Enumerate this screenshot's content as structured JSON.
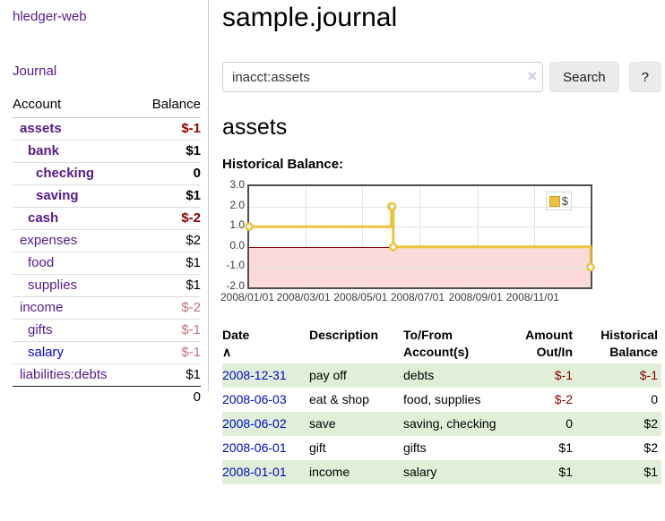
{
  "app": {
    "brand": "hledger-web"
  },
  "sidebar": {
    "journal_link": "Journal",
    "table": {
      "headers": {
        "account": "Account",
        "balance": "Balance"
      },
      "rows": [
        {
          "account": "assets",
          "balance": "$-1",
          "level": 1,
          "bold": true,
          "link_color": "purple"
        },
        {
          "account": "bank",
          "balance": "$1",
          "level": 2,
          "bold": true,
          "link_color": "purple"
        },
        {
          "account": "checking",
          "balance": "0",
          "level": 3,
          "bold": true,
          "link_color": "purple"
        },
        {
          "account": "saving",
          "balance": "$1",
          "level": 3,
          "bold": true,
          "link_color": "purple"
        },
        {
          "account": "cash",
          "balance": "$-2",
          "level": 2,
          "bold": true,
          "link_color": "purple"
        },
        {
          "account": "expenses",
          "balance": "$2",
          "level": 1,
          "bold": false,
          "link_color": "purple"
        },
        {
          "account": "food",
          "balance": "$1",
          "level": 2,
          "bold": false,
          "link_color": "purple"
        },
        {
          "account": "supplies",
          "balance": "$1",
          "level": 2,
          "bold": false,
          "link_color": "purple"
        },
        {
          "account": "income",
          "balance": "$-2",
          "level": 1,
          "bold": false,
          "link_color": "purple"
        },
        {
          "account": "gifts",
          "balance": "$-1",
          "level": 2,
          "bold": false,
          "link_color": "purple"
        },
        {
          "account": "salary",
          "balance": "$-1",
          "level": 2,
          "bold": false,
          "link_color": "blue"
        },
        {
          "account": "liabilities:debts",
          "balance": "$1",
          "level": 1,
          "bold": false,
          "link_color": "purple"
        }
      ],
      "total": "0"
    }
  },
  "header": {
    "title": "sample.journal"
  },
  "search": {
    "value": "inacct:assets",
    "clear_icon": "✕",
    "button_label": "Search",
    "help_label": "?"
  },
  "account_page": {
    "title": "assets",
    "chart_label": "Historical Balance:"
  },
  "chart_data": {
    "type": "line",
    "style": "step",
    "title": "Historical Balance",
    "series": [
      {
        "name": "$",
        "color": "#edc240",
        "points": [
          {
            "date": "2008-01-01",
            "value": 1
          },
          {
            "date": "2008-06-01",
            "value": 2
          },
          {
            "date": "2008-06-02",
            "value": 2
          },
          {
            "date": "2008-06-03",
            "value": 0
          },
          {
            "date": "2008-12-31",
            "value": -1
          }
        ]
      }
    ],
    "ylim": [
      -2,
      3
    ],
    "yticks": [
      "3.0",
      "2.0",
      "1.0",
      "0.0",
      "-1.0",
      "-2.0"
    ],
    "xticks": [
      "2008/01/01",
      "2008/03/01",
      "2008/05/01",
      "2008/07/01",
      "2008/09/01",
      "2008/11/01"
    ],
    "x_start": "2008-01-01",
    "x_end": "2008-12-31",
    "grid": true,
    "negative_region_color": "#fbdada",
    "zero_line_color": "#8b0000",
    "legend": {
      "label": "$",
      "position": "top-right"
    }
  },
  "register": {
    "headers": [
      {
        "line1": "Date",
        "sort_indicator": "∧",
        "align": "left"
      },
      {
        "line1": "Description",
        "align": "left"
      },
      {
        "line1": "To/From",
        "line2": "Account(s)",
        "align": "left"
      },
      {
        "line1": "Amount",
        "line2": "Out/In",
        "align": "right"
      },
      {
        "line1": "Historical",
        "line2": "Balance",
        "align": "right"
      }
    ],
    "rows": [
      {
        "date": "2008-12-31",
        "description": "pay off",
        "accounts": "debts",
        "amount": "$-1",
        "balance": "$-1"
      },
      {
        "date": "2008-06-03",
        "description": "eat & shop",
        "accounts": "food, supplies",
        "amount": "$-2",
        "balance": "0"
      },
      {
        "date": "2008-06-02",
        "description": "save",
        "accounts": "saving, checking",
        "amount": "0",
        "balance": "$2"
      },
      {
        "date": "2008-06-01",
        "description": "gift",
        "accounts": "gifts",
        "amount": "$1",
        "balance": "$2"
      },
      {
        "date": "2008-01-01",
        "description": "income",
        "accounts": "salary",
        "amount": "$1",
        "balance": "$1"
      }
    ]
  }
}
